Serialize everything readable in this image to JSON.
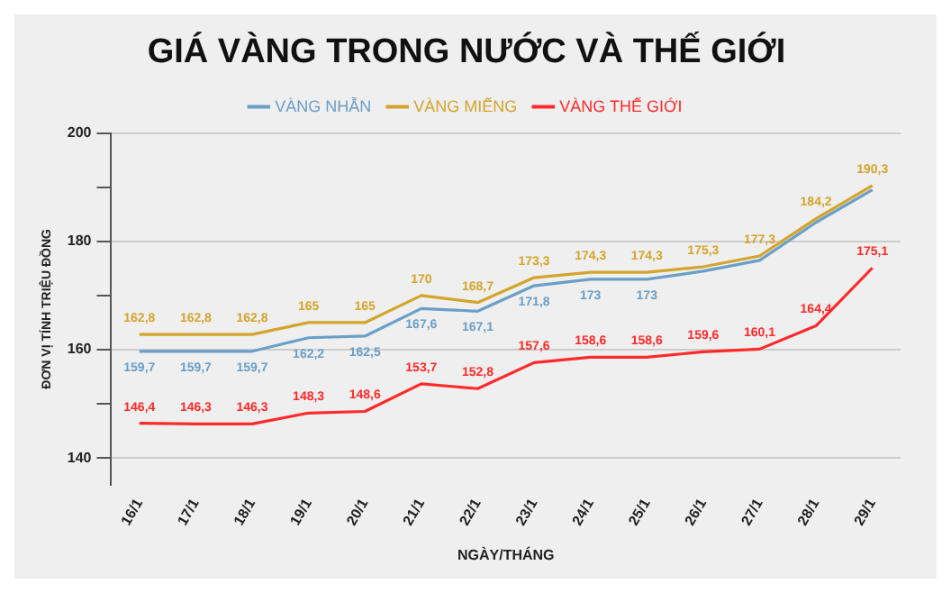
{
  "chart_data": {
    "type": "line",
    "title": "GIÁ VÀNG TRONG NƯỚC VÀ THẾ GIỚI",
    "xlabel": "NGÀY/THÁNG",
    "ylabel": "ĐƠN VỊ TÍNH TRIỆU ĐỒNG",
    "categories": [
      "16/1",
      "17/1",
      "18/1",
      "19/1",
      "20/1",
      "21/1",
      "22/1",
      "23/1",
      "24/1",
      "25/1",
      "26/1",
      "27/1",
      "28/1",
      "29/1"
    ],
    "series": [
      {
        "name": "VÀNG NHẪN",
        "color": "#6a9fc8",
        "values": [
          159.7,
          159.7,
          159.7,
          162.2,
          162.5,
          167.6,
          167.1,
          171.8,
          173,
          173,
          174.5,
          176.5,
          183.5,
          189.5
        ],
        "value_labels": [
          "159,7",
          "159,7",
          "159,7",
          "162,2",
          "162,5",
          "167,6",
          "167,1",
          "171,8",
          "173",
          "173",
          null,
          null,
          null,
          null
        ]
      },
      {
        "name": "VÀNG MIẾNG",
        "color": "#d4a52c",
        "values": [
          162.8,
          162.8,
          162.8,
          165,
          165,
          170,
          168.7,
          173.3,
          174.3,
          174.3,
          175.3,
          177.3,
          184.2,
          190.3
        ],
        "value_labels": [
          "162,8",
          "162,8",
          "162,8",
          "165",
          "165",
          "170",
          "168,7",
          "173,3",
          "174,3",
          "174,3",
          "175,3",
          "177,3",
          "184,2",
          "190,3"
        ]
      },
      {
        "name": "VÀNG THẾ GIỚI",
        "color": "#ff2a2a",
        "values": [
          146.4,
          146.3,
          146.3,
          148.3,
          148.6,
          153.7,
          152.8,
          157.6,
          158.6,
          158.6,
          159.6,
          160.1,
          164.4,
          175.1
        ],
        "value_labels": [
          "146,4",
          "146,3",
          "146,3",
          "148,3",
          "148,6",
          "153,7",
          "152,8",
          "157,6",
          "158,6",
          "158,6",
          "159,6",
          "160,1",
          "164,4",
          "175,1"
        ]
      }
    ],
    "ylim": [
      135,
      200
    ],
    "yticks": [
      {
        "value": 140,
        "label": "140"
      },
      {
        "value": 150,
        "label": null
      },
      {
        "value": 160,
        "label": "160"
      },
      {
        "value": 170,
        "label": null
      },
      {
        "value": 180,
        "label": "180"
      },
      {
        "value": 190,
        "label": null
      },
      {
        "value": 200,
        "label": "200"
      }
    ],
    "grid": "y",
    "legend": "top",
    "marker": "none",
    "line_style": "solid"
  }
}
